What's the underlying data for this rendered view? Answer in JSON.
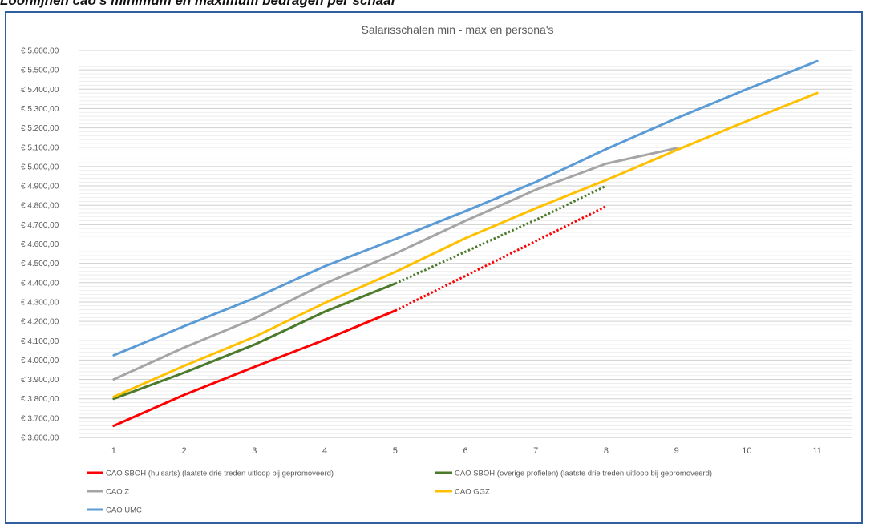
{
  "page": {
    "caption": "Loonlijnen cao's minimum en maximum bedragen per schaal"
  },
  "chart_data": {
    "type": "line",
    "title": "Salarisschalen min - max en persona's",
    "xlabel": "",
    "ylabel": "",
    "x": [
      1,
      2,
      3,
      4,
      5,
      6,
      7,
      8,
      9,
      10,
      11
    ],
    "ylim": [
      3600,
      5600
    ],
    "yticks": [
      3600,
      3700,
      3800,
      3900,
      4000,
      4100,
      4200,
      4300,
      4400,
      4500,
      4600,
      4700,
      4800,
      4900,
      5000,
      5100,
      5200,
      5300,
      5400,
      5500,
      5600
    ],
    "ytick_labels": [
      "€ 3.600,00",
      "€ 3.700,00",
      "€ 3.800,00",
      "€ 3.900,00",
      "€ 4.000,00",
      "€ 4.100,00",
      "€ 4.200,00",
      "€ 4.300,00",
      "€ 4.400,00",
      "€ 4.500,00",
      "€ 4.600,00",
      "€ 4.700,00",
      "€ 4.800,00",
      "€ 4.900,00",
      "€ 5.000,00",
      "€ 5.100,00",
      "€ 5.200,00",
      "€ 5.300,00",
      "€ 5.400,00",
      "€ 5.500,00",
      "€ 5.600,00"
    ],
    "grid": true,
    "legend_position": "bottom",
    "series": [
      {
        "name": "CAO SBOH (huisarts) (laatste drie treden uitloop bij gepromoveerd)",
        "color": "#ff0000",
        "x": [
          1,
          2,
          3,
          4,
          5
        ],
        "values": [
          3660,
          3820,
          3965,
          4105,
          4255
        ],
        "dotted_x": [
          5,
          6,
          7,
          8
        ],
        "dotted_values": [
          4255,
          4435,
          4615,
          4795
        ]
      },
      {
        "name": "CAO SBOH (overige profielen) (laatste drie treden uitloop bij gepromoveerd)",
        "color": "#4a7a2a",
        "x": [
          1,
          2,
          3,
          4,
          5
        ],
        "values": [
          3800,
          3935,
          4080,
          4250,
          4395
        ],
        "dotted_x": [
          5,
          6,
          7,
          8
        ],
        "dotted_values": [
          4395,
          4560,
          4725,
          4900
        ]
      },
      {
        "name": "CAO Z",
        "color": "#a5a5a5",
        "x": [
          1,
          2,
          3,
          4,
          5,
          6,
          7,
          8,
          9
        ],
        "values": [
          3900,
          4065,
          4215,
          4395,
          4550,
          4720,
          4880,
          5015,
          5095
        ]
      },
      {
        "name": "CAO GGZ",
        "color": "#ffc000",
        "x": [
          1,
          2,
          3,
          4,
          5,
          6,
          7,
          8,
          9,
          10,
          11
        ],
        "values": [
          3810,
          3970,
          4120,
          4295,
          4455,
          4630,
          4785,
          4930,
          5085,
          5235,
          5380
        ]
      },
      {
        "name": "CAO UMC",
        "color": "#5b9bd5",
        "x": [
          1,
          2,
          3,
          4,
          5,
          6,
          7,
          8,
          9,
          10,
          11
        ],
        "values": [
          4025,
          4175,
          4320,
          4485,
          4625,
          4770,
          4920,
          5090,
          5250,
          5400,
          5545
        ]
      }
    ]
  }
}
